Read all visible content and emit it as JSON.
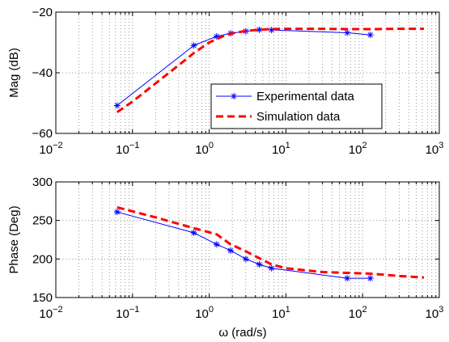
{
  "chart_data": [
    {
      "type": "line",
      "xscale": "log",
      "xlim": [
        0.01,
        1000
      ],
      "ylim": [
        -60,
        -20
      ],
      "xticks": [
        0.01,
        0.1,
        1,
        10,
        100,
        1000
      ],
      "yticks": [
        -60,
        -40,
        -20
      ],
      "ytick_labels": [
        "−60",
        "−40",
        "−20"
      ],
      "xlabel": "",
      "ylabel": "Mag (dB)",
      "grid": true,
      "legend_position": "center-right",
      "series": [
        {
          "name": "Experimental data",
          "color": "#0000ff",
          "style": "solid-star",
          "x": [
            0.063,
            0.63,
            1.25,
            1.9,
            3.0,
            4.5,
            6.5,
            63,
            126
          ],
          "y": [
            -50.8,
            -31.0,
            -28.0,
            -27.0,
            -26.3,
            -25.8,
            -25.9,
            -26.8,
            -27.5
          ]
        },
        {
          "name": "Simulation data",
          "color": "#ff0000",
          "style": "dashed",
          "x": [
            0.063,
            0.1,
            0.2,
            0.4,
            0.63,
            1.0,
            1.5,
            2.0,
            3.0,
            4.5,
            6.5,
            10,
            30,
            63,
            126,
            300,
            630
          ],
          "y": [
            -53.0,
            -49.5,
            -43.5,
            -37.5,
            -33.5,
            -30.0,
            -28.0,
            -27.0,
            -26.2,
            -25.8,
            -25.6,
            -25.5,
            -25.5,
            -25.6,
            -25.6,
            -25.5,
            -25.5
          ]
        }
      ]
    },
    {
      "type": "line",
      "xscale": "log",
      "xlim": [
        0.01,
        1000
      ],
      "ylim": [
        150,
        300
      ],
      "xticks": [
        0.01,
        0.1,
        1,
        10,
        100,
        1000
      ],
      "yticks": [
        150,
        200,
        250,
        300
      ],
      "ytick_labels": [
        "150",
        "200",
        "250",
        "300"
      ],
      "xlabel": "ω (rad/s)",
      "ylabel": "Phase (Deg)",
      "grid": true,
      "series": [
        {
          "color": "#0000ff",
          "style": "solid-star",
          "x": [
            0.063,
            0.63,
            1.25,
            1.9,
            3.0,
            4.5,
            6.5,
            63,
            126
          ],
          "y": [
            261,
            234,
            219,
            211,
            200,
            193,
            188,
            175,
            175
          ]
        },
        {
          "color": "#ff0000",
          "style": "dashed",
          "x": [
            0.063,
            0.2,
            0.63,
            1.25,
            1.9,
            3.0,
            4.5,
            6.5,
            10,
            30,
            63,
            126,
            300,
            630
          ],
          "y": [
            267,
            254,
            240,
            232,
            219,
            210,
            201,
            193,
            188,
            183,
            182,
            181,
            178,
            176
          ]
        }
      ]
    }
  ],
  "tick_exponent_base": "10"
}
